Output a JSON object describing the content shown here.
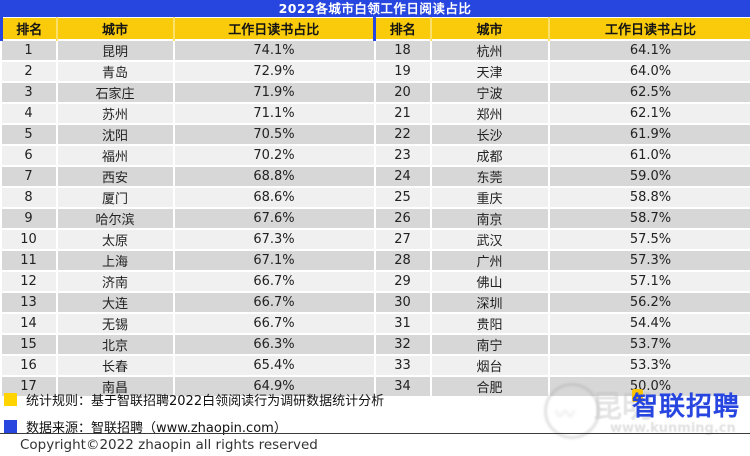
{
  "title": "2022各城市白领工作日阅读占比",
  "chart_data": {
    "type": "table",
    "title": "2022各城市白领工作日阅读占比",
    "columns": [
      "排名",
      "城市",
      "工作日读书占比"
    ],
    "layout": "two side-by-side halves; ranks 1-17 in left half, 18-34 in right half; alternating grey row stripes",
    "rows": [
      [
        1,
        "昆明",
        "74.1%"
      ],
      [
        2,
        "青岛",
        "72.9%"
      ],
      [
        3,
        "石家庄",
        "71.9%"
      ],
      [
        4,
        "苏州",
        "71.1%"
      ],
      [
        5,
        "沈阳",
        "70.5%"
      ],
      [
        6,
        "福州",
        "70.2%"
      ],
      [
        7,
        "西安",
        "68.8%"
      ],
      [
        8,
        "厦门",
        "68.6%"
      ],
      [
        9,
        "哈尔滨",
        "67.6%"
      ],
      [
        10,
        "太原",
        "67.3%"
      ],
      [
        11,
        "上海",
        "67.1%"
      ],
      [
        12,
        "济南",
        "66.7%"
      ],
      [
        13,
        "大连",
        "66.7%"
      ],
      [
        14,
        "无锡",
        "66.7%"
      ],
      [
        15,
        "北京",
        "66.3%"
      ],
      [
        16,
        "长春",
        "65.4%"
      ],
      [
        17,
        "南昌",
        "64.9%"
      ],
      [
        18,
        "杭州",
        "64.1%"
      ],
      [
        19,
        "天津",
        "64.0%"
      ],
      [
        20,
        "宁波",
        "62.5%"
      ],
      [
        21,
        "郑州",
        "62.1%"
      ],
      [
        22,
        "长沙",
        "61.9%"
      ],
      [
        23,
        "成都",
        "61.0%"
      ],
      [
        24,
        "东莞",
        "59.0%"
      ],
      [
        25,
        "重庆",
        "58.8%"
      ],
      [
        26,
        "南京",
        "58.7%"
      ],
      [
        27,
        "武汉",
        "57.5%"
      ],
      [
        28,
        "广州",
        "57.3%"
      ],
      [
        29,
        "佛山",
        "57.1%"
      ],
      [
        30,
        "深圳",
        "56.2%"
      ],
      [
        31,
        "贵阳",
        "54.4%"
      ],
      [
        32,
        "南宁",
        "53.7%"
      ],
      [
        33,
        "烟台",
        "53.3%"
      ],
      [
        34,
        "合肥",
        "50.0%"
      ]
    ]
  },
  "footer": {
    "rule_text": "统计规则：基于智联招聘2022白领阅读行为调研数据统计分析",
    "source_text": "数据来源：智联招聘（www.zhaopin.com）",
    "copyright": "Copyright©2022 zhaopin all rights reserved"
  },
  "watermark": {
    "site_text": "昆明",
    "site_url": "www.kunming.cn",
    "logo_first_char": "智",
    "logo_rest": "联招聘"
  },
  "colors": {
    "brand_blue": "#2746E0",
    "header_yellow": "#F9CB0B",
    "row_dark": "#D7D7D7",
    "row_light": "#F0F0F0",
    "legend_yellow": "#FFD400"
  }
}
